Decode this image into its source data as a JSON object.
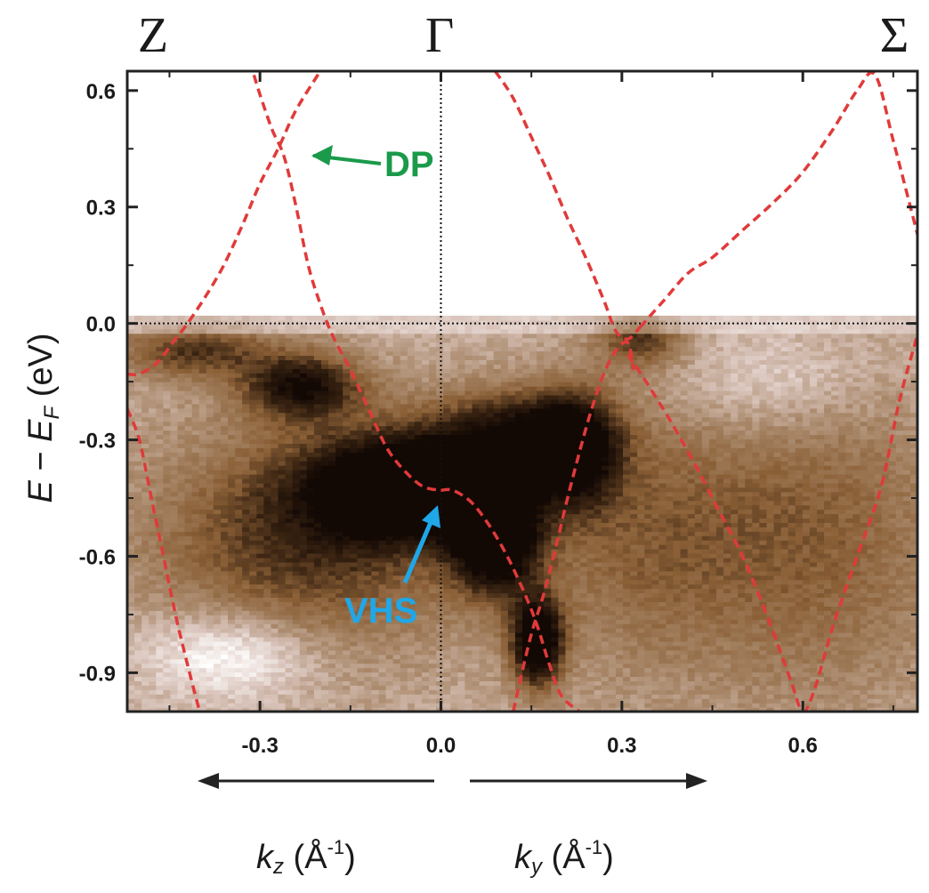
{
  "chart_data": {
    "type": "heatmap",
    "title": "",
    "high_symmetry_points": [
      "Z",
      "Γ",
      "Σ"
    ],
    "xlabel_left": "k_z (Å^-1)",
    "xlabel_right": "k_y (Å^-1)",
    "ylabel": "E − E_F (eV)",
    "xlim": [
      -0.52,
      0.79
    ],
    "ylim": [
      -1.0,
      0.65
    ],
    "x_ticks": [
      -0.3,
      0.0,
      0.3,
      0.6
    ],
    "x_tick_labels": [
      "-0.3",
      "0.0",
      "0.3",
      "0.6"
    ],
    "y_ticks": [
      0.6,
      0.3,
      0.0,
      -0.3,
      -0.6,
      -0.9
    ],
    "y_tick_labels": [
      "0.6",
      "0.3",
      "0.0",
      "-0.3",
      "-0.6",
      "-0.9"
    ],
    "reference_lines": {
      "fermi_level": 0.0,
      "gamma_point": 0.0
    },
    "colormap": [
      "#ffffff",
      "#d9c4bb",
      "#a9886a",
      "#8a5f36",
      "#3a2412",
      "#120804"
    ],
    "intensity_blobs": [
      {
        "x": -0.05,
        "y": -0.42,
        "sx": 0.11,
        "sy": 0.09,
        "w": 1.0
      },
      {
        "x": 0.09,
        "y": -0.55,
        "sx": 0.05,
        "sy": 0.1,
        "w": 0.9
      },
      {
        "x": 0.16,
        "y": -0.82,
        "sx": 0.03,
        "sy": 0.08,
        "w": 0.9
      },
      {
        "x": 0.22,
        "y": -0.33,
        "sx": 0.05,
        "sy": 0.1,
        "w": 0.7
      },
      {
        "x": -0.23,
        "y": -0.16,
        "sx": 0.07,
        "sy": 0.06,
        "w": 0.65
      },
      {
        "x": -0.41,
        "y": -0.07,
        "sx": 0.09,
        "sy": 0.05,
        "w": 0.45
      },
      {
        "x": -0.22,
        "y": -0.55,
        "sx": 0.18,
        "sy": 0.2,
        "w": 0.5
      },
      {
        "x": 0.12,
        "y": -0.28,
        "sx": 0.1,
        "sy": 0.08,
        "w": 0.55
      },
      {
        "x": 0.33,
        "y": -0.04,
        "sx": 0.05,
        "sy": 0.05,
        "w": 0.45
      },
      {
        "x": 0.35,
        "y": -0.55,
        "sx": 0.15,
        "sy": 0.25,
        "w": 0.3
      },
      {
        "x": 0.65,
        "y": -0.55,
        "sx": 0.15,
        "sy": 0.3,
        "w": 0.28
      },
      {
        "x": -0.35,
        "y": -0.85,
        "sx": 0.1,
        "sy": 0.08,
        "w": -0.35
      },
      {
        "x": 0.55,
        "y": -0.15,
        "sx": 0.12,
        "sy": 0.1,
        "w": -0.2
      }
    ],
    "dft_bands_color": "#e03a3a",
    "dft_bands": [
      {
        "x": [
          -0.31,
          -0.3,
          -0.28,
          -0.26,
          -0.24,
          -0.22,
          -0.2,
          -0.18,
          -0.15,
          -0.12,
          -0.09,
          -0.06,
          -0.03,
          0.0
        ],
        "y": [
          0.64,
          0.59,
          0.5,
          0.43,
          0.3,
          0.15,
          0.05,
          -0.03,
          -0.12,
          -0.22,
          -0.32,
          -0.38,
          -0.42,
          -0.43
        ]
      },
      {
        "x": [
          -0.52,
          -0.5,
          -0.47,
          -0.44,
          -0.42,
          -0.39,
          -0.36,
          -0.33,
          -0.3,
          -0.27,
          -0.24,
          -0.2
        ],
        "y": [
          -0.13,
          -0.13,
          -0.1,
          -0.04,
          0.0,
          0.07,
          0.15,
          0.25,
          0.36,
          0.45,
          0.55,
          0.65
        ]
      },
      {
        "x": [
          -0.52,
          -0.5,
          -0.48,
          -0.46,
          -0.44,
          -0.42,
          -0.4
        ],
        "y": [
          -0.22,
          -0.3,
          -0.45,
          -0.6,
          -0.75,
          -0.88,
          -1.0
        ]
      },
      {
        "x": [
          0.0,
          0.02,
          0.05,
          0.08,
          0.11,
          0.14,
          0.16,
          0.18,
          0.2,
          0.23
        ],
        "y": [
          -0.43,
          -0.43,
          -0.46,
          -0.52,
          -0.6,
          -0.7,
          -0.78,
          -0.88,
          -0.96,
          -1.0
        ]
      },
      {
        "x": [
          0.12,
          0.13,
          0.15,
          0.17,
          0.19,
          0.21,
          0.23,
          0.25,
          0.27,
          0.29,
          0.31,
          0.32
        ],
        "y": [
          -1.0,
          -0.93,
          -0.8,
          -0.7,
          -0.58,
          -0.45,
          -0.33,
          -0.22,
          -0.13,
          -0.07,
          -0.05,
          -0.12
        ]
      },
      {
        "x": [
          0.09,
          0.12,
          0.15,
          0.18,
          0.21,
          0.24,
          0.27,
          0.29,
          0.31,
          0.33
        ],
        "y": [
          0.65,
          0.58,
          0.48,
          0.38,
          0.27,
          0.17,
          0.06,
          -0.02,
          -0.04,
          -0.01
        ]
      },
      {
        "x": [
          0.33,
          0.37,
          0.41,
          0.45,
          0.5,
          0.55,
          0.6,
          0.65,
          0.69,
          0.72,
          0.75,
          0.79
        ],
        "y": [
          -0.01,
          0.06,
          0.13,
          0.17,
          0.24,
          0.31,
          0.39,
          0.5,
          0.6,
          0.64,
          0.47,
          0.23
        ]
      },
      {
        "x": [
          0.31,
          0.34,
          0.38,
          0.42,
          0.46,
          0.5,
          0.54,
          0.58,
          0.6,
          0.62,
          0.65,
          0.69,
          0.73,
          0.76,
          0.79
        ],
        "y": [
          -0.08,
          -0.15,
          -0.25,
          -0.36,
          -0.48,
          -0.6,
          -0.75,
          -0.92,
          -1.0,
          -0.94,
          -0.78,
          -0.6,
          -0.42,
          -0.2,
          -0.03
        ]
      }
    ],
    "annotations": [
      {
        "text": "DP",
        "color": "#1a9a4a",
        "points_to": [
          -0.26,
          0.43
        ]
      },
      {
        "text": "VHS",
        "color": "#1fa7e8",
        "points_to": [
          -0.02,
          -0.46
        ]
      }
    ],
    "k_direction_arrows": [
      "←",
      "→"
    ]
  }
}
